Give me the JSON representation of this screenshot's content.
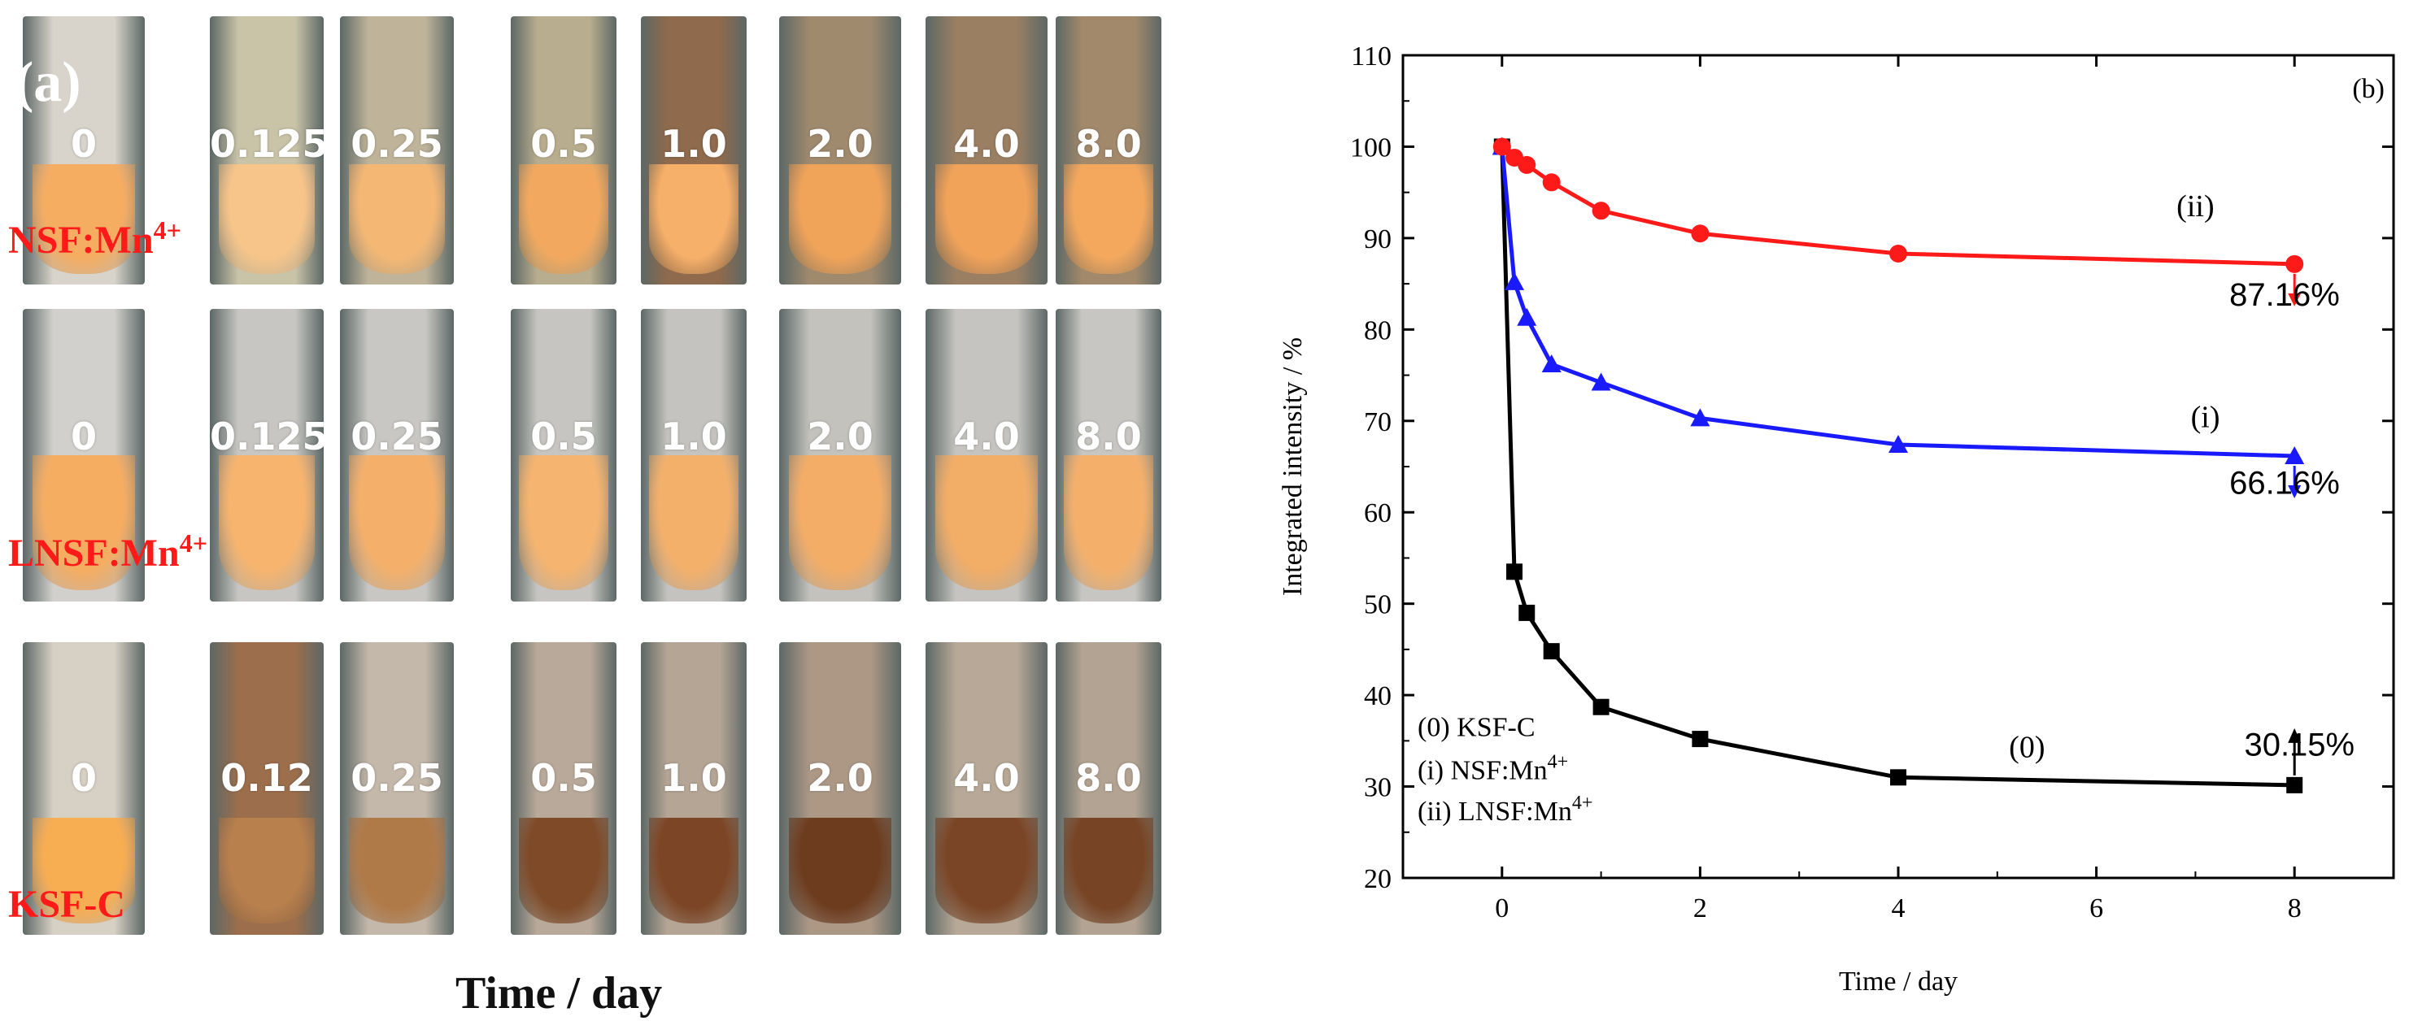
{
  "panel_a": {
    "tag": "(a)",
    "xlabel": "Time / day",
    "rows": [
      {
        "label": "NSF:Mn",
        "label_sup": "4+",
        "vials": [
          {
            "label": "0",
            "liquid": "#f5ad62",
            "glass": "#d8d4cb"
          },
          {
            "label": "0.125",
            "liquid": "#f7c58a",
            "glass": "#c9c3a8"
          },
          {
            "label": "0.25",
            "liquid": "#f5b874",
            "glass": "#bfb49a"
          },
          {
            "label": "0.5",
            "liquid": "#f2a95f",
            "glass": "#b8ad8e"
          },
          {
            "label": "1.0",
            "liquid": "#f7b06a",
            "glass": "#8f6a4c"
          },
          {
            "label": "2.0",
            "liquid": "#f0a45a",
            "glass": "#a08a6e"
          },
          {
            "label": "4.0",
            "liquid": "#f1a35a",
            "glass": "#9a7f63"
          },
          {
            "label": "8.0",
            "liquid": "#f3a85e",
            "glass": "#a2896b"
          }
        ]
      },
      {
        "label": "LNSF:Mn",
        "label_sup": "4+",
        "vials": [
          {
            "label": "0",
            "liquid": "#f5ad62",
            "glass": "#d2d0cc"
          },
          {
            "label": "0.125",
            "liquid": "#f6b46e",
            "glass": "#c7c6c2"
          },
          {
            "label": "0.25",
            "liquid": "#f4b06b",
            "glass": "#c8c7c3"
          },
          {
            "label": "0.5",
            "liquid": "#f5b46f",
            "glass": "#c6c5c1"
          },
          {
            "label": "1.0",
            "liquid": "#f3b06b",
            "glass": "#c4c3bf"
          },
          {
            "label": "2.0",
            "liquid": "#f3ad67",
            "glass": "#c3c2bd"
          },
          {
            "label": "4.0",
            "liquid": "#f2ad66",
            "glass": "#c5c4c0"
          },
          {
            "label": "8.0",
            "liquid": "#f4b06b",
            "glass": "#c7c6c2"
          }
        ]
      },
      {
        "label": "KSF-C",
        "label_sup": "",
        "vials": [
          {
            "label": "0",
            "liquid": "#f7ad52",
            "glass": "#d7d0c4"
          },
          {
            "label": "0.12",
            "liquid": "#b8804d",
            "glass": "#9c6e4c"
          },
          {
            "label": "0.25",
            "liquid": "#b07a48",
            "glass": "#c4b8aa"
          },
          {
            "label": "0.5",
            "liquid": "#7e4a27",
            "glass": "#b9a99a"
          },
          {
            "label": "1.0",
            "liquid": "#7c4626",
            "glass": "#b5a595"
          },
          {
            "label": "2.0",
            "liquid": "#6d3c1f",
            "glass": "#ad9886"
          },
          {
            "label": "4.0",
            "liquid": "#7a4526",
            "glass": "#b7a897"
          },
          {
            "label": "8.0",
            "liquid": "#774425",
            "glass": "#b3a392"
          }
        ]
      }
    ]
  },
  "chart_data": {
    "type": "line",
    "panel_tag": "(b)",
    "xlabel": "Time / day",
    "ylabel": "Integrated intensity / %",
    "xlim": [
      -1,
      9
    ],
    "ylim": [
      20,
      110
    ],
    "xticks": [
      0,
      2,
      4,
      6,
      8
    ],
    "yticks": [
      20,
      30,
      40,
      50,
      60,
      70,
      80,
      90,
      100,
      110
    ],
    "series": [
      {
        "name": "(0) KSF-C",
        "tag": "(0)",
        "color": "#000000",
        "marker": "square",
        "x": [
          0,
          0.125,
          0.25,
          0.5,
          1,
          2,
          4,
          8
        ],
        "y": [
          100,
          53.5,
          49,
          44.8,
          38.7,
          35.2,
          31,
          30.15
        ],
        "end_label": "30.15%"
      },
      {
        "name": "(i)  NSF:Mn",
        "name_sup": "4+",
        "tag": "(i)",
        "color": "#1a1aff",
        "marker": "triangle",
        "x": [
          0,
          0.125,
          0.25,
          0.5,
          1,
          2,
          4,
          8
        ],
        "y": [
          100,
          85.2,
          81.3,
          76.2,
          74.2,
          70.3,
          67.4,
          66.16
        ],
        "end_label": "66.16%"
      },
      {
        "name": "(ii) LNSF:Mn",
        "name_sup": "4+",
        "tag": "(ii)",
        "color": "#ff1a1a",
        "marker": "circle",
        "x": [
          0,
          0.125,
          0.25,
          0.5,
          1,
          2,
          4,
          8
        ],
        "y": [
          100,
          98.8,
          98,
          96.1,
          93,
          90.5,
          88.3,
          87.16
        ],
        "end_label": "87.16%"
      }
    ],
    "legend_position": "bottom-left"
  }
}
